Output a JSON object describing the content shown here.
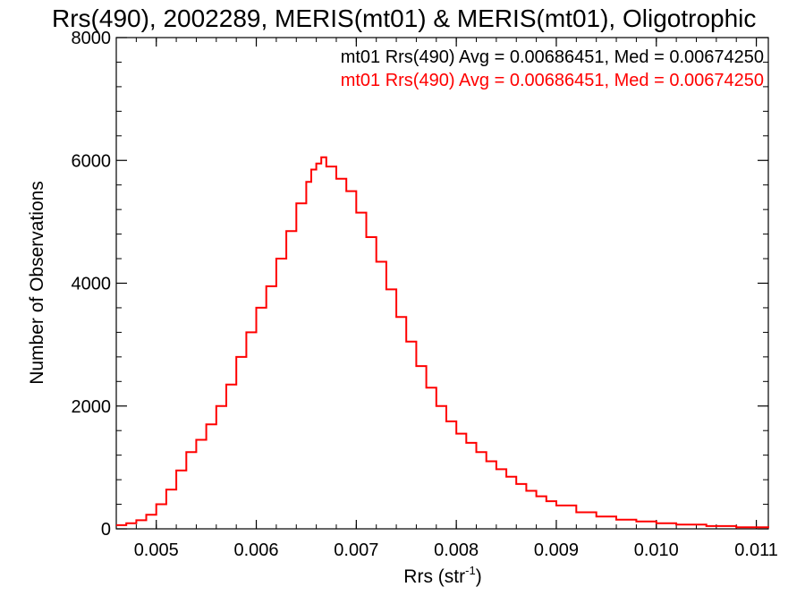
{
  "chart_data": {
    "type": "line",
    "title": "Rrs(490), 2002289, MERIS(mt01) & MERIS(mt01), Oligotrophic",
    "xlabel": "Rrs (str",
    "xlabel_sup": "-1",
    "xlabel_close": ")",
    "ylabel": "Number of Observations",
    "xlim": [
      0.0046,
      0.01112
    ],
    "ylim": [
      0,
      8000
    ],
    "x_ticks": [
      0.005,
      0.006,
      0.007,
      0.008,
      0.009,
      0.01,
      0.011
    ],
    "x_tick_labels": [
      "0.005",
      "0.006",
      "0.007",
      "0.008",
      "0.009",
      "0.010",
      "0.011"
    ],
    "y_ticks": [
      0,
      2000,
      4000,
      6000,
      8000
    ],
    "y_tick_labels": [
      "0",
      "2000",
      "4000",
      "6000",
      "8000"
    ],
    "grid": false,
    "annotations": [
      {
        "text": "mt01 Rrs(490) Avg = 0.00686451, Med = 0.00674250",
        "color": "#000000"
      },
      {
        "text": "mt01 Rrs(490) Avg = 0.00686451, Med = 0.00674250",
        "color": "#ff0000"
      }
    ],
    "series": [
      {
        "color": "#ff0000",
        "style": "step",
        "points": [
          [
            0.0046,
            60
          ],
          [
            0.0047,
            90
          ],
          [
            0.0048,
            140
          ],
          [
            0.0049,
            230
          ],
          [
            0.005,
            400
          ],
          [
            0.0051,
            640
          ],
          [
            0.0052,
            950
          ],
          [
            0.0053,
            1250
          ],
          [
            0.0054,
            1450
          ],
          [
            0.0055,
            1700
          ],
          [
            0.0056,
            2000
          ],
          [
            0.0057,
            2350
          ],
          [
            0.0058,
            2800
          ],
          [
            0.0059,
            3200
          ],
          [
            0.006,
            3600
          ],
          [
            0.0061,
            3950
          ],
          [
            0.0062,
            4400
          ],
          [
            0.0063,
            4850
          ],
          [
            0.0064,
            5300
          ],
          [
            0.0065,
            5650
          ],
          [
            0.00655,
            5850
          ],
          [
            0.0066,
            5950
          ],
          [
            0.00665,
            6050
          ],
          [
            0.0067,
            5900
          ],
          [
            0.0068,
            5700
          ],
          [
            0.0069,
            5500
          ],
          [
            0.007,
            5150
          ],
          [
            0.0071,
            4750
          ],
          [
            0.0072,
            4350
          ],
          [
            0.0073,
            3900
          ],
          [
            0.0074,
            3450
          ],
          [
            0.0075,
            3050
          ],
          [
            0.0076,
            2650
          ],
          [
            0.0077,
            2300
          ],
          [
            0.0078,
            2000
          ],
          [
            0.0079,
            1750
          ],
          [
            0.008,
            1550
          ],
          [
            0.0081,
            1400
          ],
          [
            0.0082,
            1250
          ],
          [
            0.0083,
            1100
          ],
          [
            0.0084,
            970
          ],
          [
            0.0085,
            850
          ],
          [
            0.0086,
            730
          ],
          [
            0.0087,
            620
          ],
          [
            0.0088,
            530
          ],
          [
            0.0089,
            450
          ],
          [
            0.009,
            380
          ],
          [
            0.0092,
            270
          ],
          [
            0.0094,
            200
          ],
          [
            0.0096,
            150
          ],
          [
            0.0098,
            120
          ],
          [
            0.01,
            90
          ],
          [
            0.0102,
            70
          ],
          [
            0.0105,
            45
          ],
          [
            0.0108,
            25
          ],
          [
            0.01112,
            15
          ]
        ]
      }
    ]
  }
}
